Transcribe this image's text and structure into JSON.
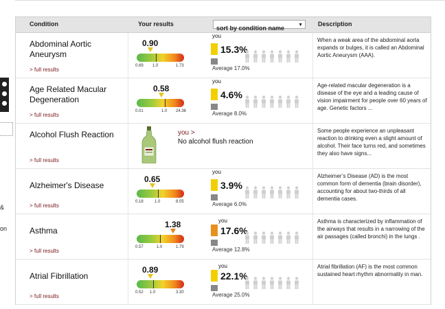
{
  "header": {
    "condition": "Condition",
    "your_results": "Your results",
    "sort_label": "sort by condition name",
    "description": "Description"
  },
  "left_panel": {
    "text1": "&",
    "text2": "on"
  },
  "full_results_label": "> full results",
  "you_label": "you",
  "rows": [
    {
      "name": "Abdominal Aortic Aneurysm",
      "score": "0.90",
      "score_value": 0.9,
      "scale": [
        "0.69",
        "1.0",
        "1.73"
      ],
      "scale_values": [
        0.69,
        1.0,
        1.73
      ],
      "marker_color": "#e8c21a",
      "you_pct": "15.3%",
      "you_value": 15.3,
      "avg_label": "Average 17.0%",
      "avg_value": 17.0,
      "you_color": "#f2d000",
      "description": "When a weak area of the abdominal aorta expands or bulges, it is called an Abdominal Aortic Aneurysm (AAA)."
    },
    {
      "name": "Age Related Macular Degeneration",
      "score": "0.58",
      "score_value": 0.58,
      "scale": [
        "0.01",
        "1.0",
        "24.36"
      ],
      "scale_values": [
        0.01,
        1.0,
        24.36
      ],
      "marker_color": "#e8c21a",
      "you_pct": "4.6%",
      "you_value": 4.6,
      "avg_label": "Average 8.0%",
      "avg_value": 8.0,
      "you_color": "#f2d000",
      "description": "Age-related macular degeneration is a disease of the eye and a leading cause of vision impairment for people over 60 years of age. Genetic factors ..."
    },
    {
      "name": "Alcohol Flush Reaction",
      "flush_you": "you >",
      "flush_text": "No alcohol flush reaction",
      "description": "Some people experience an unpleasant reaction to drinking even a slight amount of alcohol. Their face turns red, and sometimes they also have signs..."
    },
    {
      "name": "Alzheimer's Disease",
      "score": "0.65",
      "score_value": 0.65,
      "scale": [
        "0.18",
        "1.0",
        "8.05"
      ],
      "scale_values": [
        0.18,
        1.0,
        8.05
      ],
      "marker_color": "#e8c21a",
      "you_pct": "3.9%",
      "you_value": 3.9,
      "avg_label": "Average 6.0%",
      "avg_value": 6.0,
      "you_color": "#f2d000",
      "description": "Alzheimer’s Disease (AD) is the most common form of dementia (brain disorder), accounting for about two-thirds of all dementia cases."
    },
    {
      "name": "Asthma",
      "score": "1.38",
      "score_value": 1.38,
      "scale": [
        "0.57",
        "1.0",
        "1.79"
      ],
      "scale_values": [
        0.57,
        1.0,
        1.79
      ],
      "marker_color": "#e0861c",
      "you_pct": "17.6%",
      "you_value": 17.6,
      "avg_label": "Average 12.8%",
      "avg_value": 12.8,
      "you_color": "#e8901e",
      "description": "Asthma is characterized by inflammation of the airways that results in a narrowing of the air passages (called bronchi) in the lungs ."
    },
    {
      "name": "Atrial Fibrillation",
      "score": "0.89",
      "score_value": 0.89,
      "scale": [
        "0.52",
        "1.0",
        "3.30"
      ],
      "scale_values": [
        0.52,
        1.0,
        3.3
      ],
      "marker_color": "#e8c21a",
      "you_pct": "22.1%",
      "you_value": 22.1,
      "avg_label": "Average 25.0%",
      "avg_value": 25.0,
      "you_color": "#f2d000",
      "description": "Atrial fibrillation (AF) is the most common sustained heart rhythm abnormality in man."
    }
  ]
}
